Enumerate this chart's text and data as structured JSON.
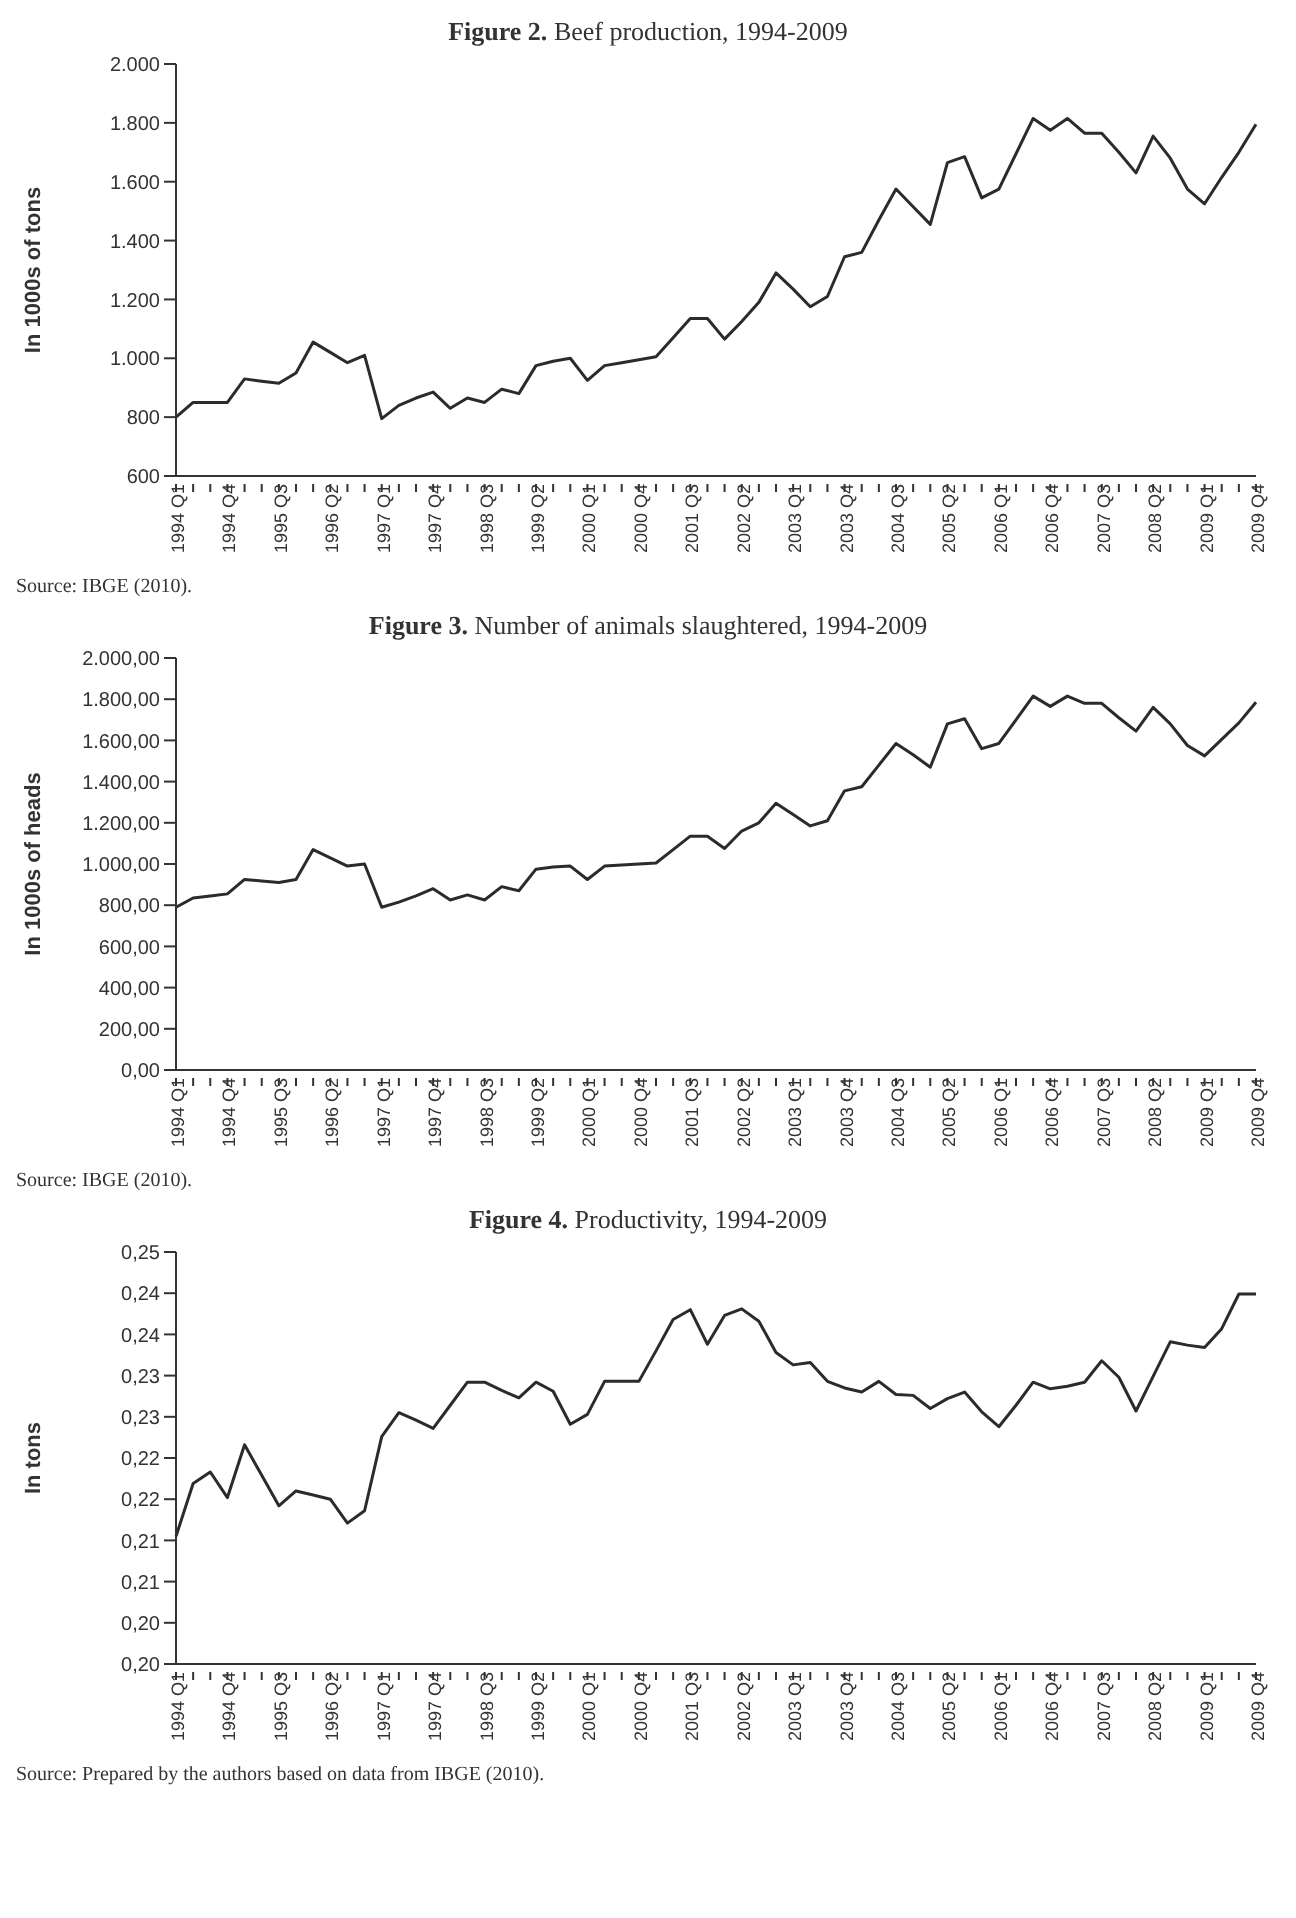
{
  "chart_data": [
    {
      "type": "line",
      "title": "Figure 2. Beef production, 1994-2009",
      "ylabel": "In 1000s of tons",
      "annotations": [
        "Source: IBGE (2010)."
      ],
      "categories": [
        "1994 Q1",
        null,
        null,
        "1994 Q4",
        null,
        null,
        "1995 Q3",
        null,
        null,
        "1996 Q2",
        null,
        null,
        "1997 Q1",
        null,
        null,
        "1997 Q4",
        null,
        null,
        "1998 Q3",
        null,
        null,
        "1999 Q2",
        null,
        null,
        "2000 Q1",
        null,
        null,
        "2000 Q4",
        null,
        null,
        "2001 Q3",
        null,
        null,
        "2002 Q2",
        null,
        null,
        "2003 Q1",
        null,
        null,
        "2003 Q4",
        null,
        null,
        "2004 Q3",
        null,
        null,
        "2005 Q2",
        null,
        null,
        "2006 Q1",
        null,
        null,
        "2006 Q4",
        null,
        null,
        "2007 Q3",
        null,
        null,
        "2008 Q2",
        null,
        null,
        "2009 Q1",
        null,
        null,
        "2009 Q4"
      ],
      "series": [
        {
          "color": "#2b2b2b",
          "values": [
            800,
            850,
            850,
            850,
            930,
            922,
            915,
            950,
            1055,
            1020,
            985,
            1010,
            795,
            840,
            865,
            885,
            830,
            865,
            850,
            895,
            880,
            975,
            990,
            1000,
            925,
            975,
            985,
            995,
            1005,
            1070,
            1135,
            1135,
            1065,
            1125,
            1190,
            1290,
            1235,
            1175,
            1210,
            1345,
            1360,
            1470,
            1575,
            1515,
            1455,
            1665,
            1685,
            1545,
            1575,
            1695,
            1815,
            1775,
            1815,
            1765,
            1765,
            1700,
            1630,
            1755,
            1680,
            1575,
            1525,
            1615,
            1700,
            1795
          ]
        }
      ],
      "ylim": [
        600,
        2000
      ],
      "yticks": [
        {
          "value": 600,
          "label": "600"
        },
        {
          "value": 800,
          "label": "800"
        },
        {
          "value": 1000,
          "label": "1.000"
        },
        {
          "value": 1200,
          "label": "1.200"
        },
        {
          "value": 1400,
          "label": "1.400"
        },
        {
          "value": 1600,
          "label": "1.600"
        },
        {
          "value": 1800,
          "label": "1.800"
        },
        {
          "value": 2000,
          "label": "2.000"
        }
      ],
      "grid": false,
      "legend": false,
      "marker": "none",
      "line_style": "solid"
    },
    {
      "type": "line",
      "title": "Figure 3. Number of animals slaughtered, 1994-2009",
      "ylabel": "In 1000s of heads",
      "annotations": [
        "Source: IBGE (2010)."
      ],
      "categories": [
        "1994 Q1",
        null,
        null,
        "1994 Q4",
        null,
        null,
        "1995 Q3",
        null,
        null,
        "1996 Q2",
        null,
        null,
        "1997 Q1",
        null,
        null,
        "1997 Q4",
        null,
        null,
        "1998 Q3",
        null,
        null,
        "1999 Q2",
        null,
        null,
        "2000 Q1",
        null,
        null,
        "2000 Q4",
        null,
        null,
        "2001 Q3",
        null,
        null,
        "2002 Q2",
        null,
        null,
        "2003 Q1",
        null,
        null,
        "2003 Q4",
        null,
        null,
        "2004 Q3",
        null,
        null,
        "2005 Q2",
        null,
        null,
        "2006 Q1",
        null,
        null,
        "2006 Q4",
        null,
        null,
        "2007 Q3",
        null,
        null,
        "2008 Q2",
        null,
        null,
        "2009 Q1",
        null,
        null,
        "2009 Q4"
      ],
      "series": [
        {
          "color": "#2b2b2b",
          "values": [
            790,
            835,
            845,
            855,
            925,
            918,
            910,
            925,
            1070,
            1030,
            990,
            1000,
            790,
            815,
            845,
            880,
            825,
            850,
            825,
            890,
            870,
            975,
            985,
            990,
            925,
            990,
            995,
            1000,
            1005,
            1070,
            1135,
            1135,
            1075,
            1160,
            1200,
            1295,
            1240,
            1185,
            1210,
            1355,
            1375,
            1480,
            1585,
            1530,
            1470,
            1680,
            1705,
            1560,
            1585,
            1700,
            1815,
            1765,
            1815,
            1780,
            1780,
            1710,
            1645,
            1760,
            1680,
            1575,
            1525,
            1605,
            1685,
            1785
          ]
        }
      ],
      "ylim": [
        0,
        2000
      ],
      "yticks": [
        {
          "value": 0,
          "label": "0,00"
        },
        {
          "value": 200,
          "label": "200,00"
        },
        {
          "value": 400,
          "label": "400,00"
        },
        {
          "value": 600,
          "label": "600,00"
        },
        {
          "value": 800,
          "label": "800,00"
        },
        {
          "value": 1000,
          "label": "1.000,00"
        },
        {
          "value": 1200,
          "label": "1.200,00"
        },
        {
          "value": 1400,
          "label": "1.400,00"
        },
        {
          "value": 1600,
          "label": "1.600,00"
        },
        {
          "value": 1800,
          "label": "1.800,00"
        },
        {
          "value": 2000,
          "label": "2.000,00"
        }
      ],
      "grid": false,
      "legend": false,
      "marker": "none",
      "line_style": "solid"
    },
    {
      "type": "line",
      "title": "Figure 4. Productivity, 1994-2009",
      "ylabel": "In tons",
      "annotations": [
        "Source: Prepared by the authors based on data from IBGE (2010)."
      ],
      "categories": [
        "1994 Q1",
        null,
        null,
        "1994 Q4",
        null,
        null,
        "1995 Q3",
        null,
        null,
        "1996 Q2",
        null,
        null,
        "1997 Q1",
        null,
        null,
        "1997 Q4",
        null,
        null,
        "1998 Q3",
        null,
        null,
        "1999 Q2",
        null,
        null,
        "2000 Q1",
        null,
        null,
        "2000 Q4",
        null,
        null,
        "2001 Q3",
        null,
        null,
        "2002 Q2",
        null,
        null,
        "2003 Q1",
        null,
        null,
        "2003 Q4",
        null,
        null,
        "2004 Q3",
        null,
        null,
        "2005 Q2",
        null,
        null,
        "2006 Q1",
        null,
        null,
        "2006 Q4",
        null,
        null,
        "2007 Q3",
        null,
        null,
        "2008 Q2",
        null,
        null,
        "2009 Q1",
        null,
        null,
        "2009 Q4"
      ],
      "series": [
        {
          "color": "#2b2b2b",
          "values": [
            0.2155,
            0.2219,
            0.2233,
            0.2202,
            0.2266,
            0.2229,
            0.2192,
            0.221,
            0.2205,
            0.22,
            0.2171,
            0.2186,
            0.2276,
            0.2305,
            0.2296,
            0.2286,
            0.2314,
            0.2342,
            0.2342,
            0.2332,
            0.2323,
            0.2342,
            0.2331,
            0.2291,
            0.2303,
            0.2343,
            0.2343,
            0.2343,
            0.238,
            0.2418,
            0.243,
            0.2388,
            0.2423,
            0.2431,
            0.2416,
            0.2378,
            0.2363,
            0.2366,
            0.2343,
            0.2335,
            0.233,
            0.2343,
            0.2327,
            0.2326,
            0.231,
            0.2322,
            0.233,
            0.2306,
            0.2288,
            0.2314,
            0.2342,
            0.2334,
            0.2337,
            0.2342,
            0.2368,
            0.2348,
            0.2307,
            0.2349,
            0.2391,
            0.2387,
            0.2384,
            0.2407,
            0.2449,
            0.2449
          ]
        }
      ],
      "ylim": [
        0.2,
        0.25
      ],
      "yticks": [
        {
          "value": 0.2,
          "label": "0,20"
        },
        {
          "value": 0.205,
          "label": "0,20"
        },
        {
          "value": 0.21,
          "label": "0,21"
        },
        {
          "value": 0.215,
          "label": "0,21"
        },
        {
          "value": 0.22,
          "label": "0,22"
        },
        {
          "value": 0.225,
          "label": "0,22"
        },
        {
          "value": 0.23,
          "label": "0,23"
        },
        {
          "value": 0.235,
          "label": "0,23"
        },
        {
          "value": 0.24,
          "label": "0,24"
        },
        {
          "value": 0.245,
          "label": "0,24"
        },
        {
          "value": 0.25,
          "label": "0,25"
        }
      ],
      "grid": false,
      "legend": false,
      "marker": "none",
      "line_style": "solid"
    }
  ]
}
